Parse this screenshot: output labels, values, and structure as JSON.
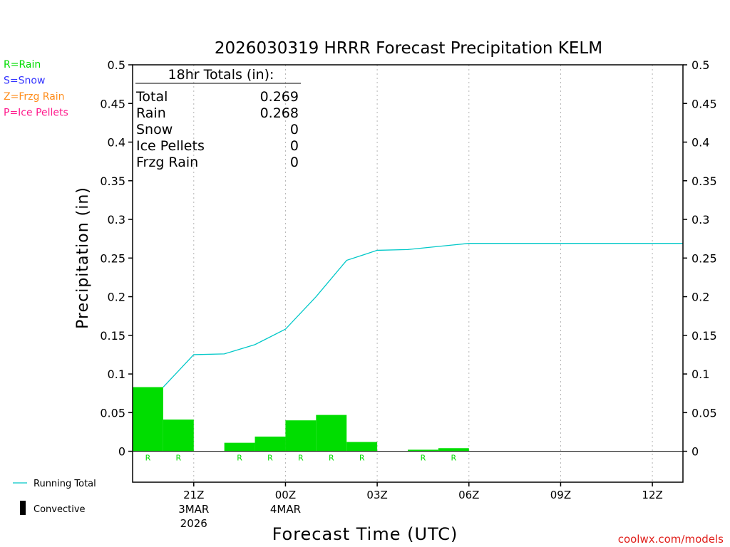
{
  "chart_data": {
    "type": "bar",
    "title": "2026030319 HRRR Forecast Precipitation KELM",
    "xlabel": "Forecast Time (UTC)",
    "ylabel": "Precipitation (in)",
    "ylim": [
      -0.04,
      0.5
    ],
    "y_ticks": [
      "0.5",
      "0.45",
      "0.4",
      "0.35",
      "0.3",
      "0.25",
      "0.2",
      "0.15",
      "0.1",
      "0.05",
      "0"
    ],
    "y_tick_values": [
      0.5,
      0.45,
      0.4,
      0.35,
      0.3,
      0.25,
      0.2,
      0.15,
      0.1,
      0.05,
      0
    ],
    "xlim": [
      19,
      37
    ],
    "x_ticks": [
      {
        "hour": 21,
        "label": "21Z",
        "sub1": "3MAR",
        "sub2": "2026"
      },
      {
        "hour": 24,
        "label": "00Z",
        "sub1": "4MAR",
        "sub2": ""
      },
      {
        "hour": 27,
        "label": "03Z",
        "sub1": "",
        "sub2": ""
      },
      {
        "hour": 30,
        "label": "06Z",
        "sub1": "",
        "sub2": ""
      },
      {
        "hour": 33,
        "label": "09Z",
        "sub1": "",
        "sub2": ""
      },
      {
        "hour": 36,
        "label": "12Z",
        "sub1": "",
        "sub2": ""
      }
    ],
    "hours": [
      20,
      21,
      22,
      23,
      24,
      25,
      26,
      27,
      28,
      29,
      30,
      31,
      32,
      33,
      34,
      35,
      36,
      37
    ],
    "series": [
      {
        "name": "Rain",
        "type": "bar",
        "color": "#00dd00",
        "values": [
          0.083,
          0.041,
          0,
          0.011,
          0.019,
          0.04,
          0.047,
          0.012,
          0,
          0.002,
          0.004,
          0,
          0,
          0,
          0,
          0,
          0,
          0
        ]
      },
      {
        "name": "Running Total",
        "type": "line",
        "color": "#00c8c8",
        "values": [
          0.083,
          0.125,
          0.126,
          0.138,
          0.158,
          0.2,
          0.247,
          0.26,
          0.261,
          0.265,
          0.269,
          0.269,
          0.269,
          0.269,
          0.269,
          0.269,
          0.269,
          0.269
        ]
      }
    ],
    "precip_type_labels": [
      {
        "hour": 20,
        "text": "R"
      },
      {
        "hour": 21,
        "text": "R"
      },
      {
        "hour": 23,
        "text": "R"
      },
      {
        "hour": 24,
        "text": "R"
      },
      {
        "hour": 25,
        "text": "R"
      },
      {
        "hour": 26,
        "text": "R"
      },
      {
        "hour": 27,
        "text": "R"
      },
      {
        "hour": 29,
        "text": "R"
      },
      {
        "hour": 30,
        "text": "R"
      }
    ],
    "grid": "vertical-dotted",
    "legend_position": "left",
    "type_legend": [
      {
        "text": "R=Rain",
        "color": "#00dd00"
      },
      {
        "text": "S=Snow",
        "color": "#3333ff"
      },
      {
        "text": "Z=Frzg Rain",
        "color": "#ff8c1a"
      },
      {
        "text": "P=Ice Pellets",
        "color": "#ff1a8c"
      }
    ],
    "bottom_legend": {
      "running_total": "Running Total",
      "convective": "Convective"
    },
    "totals_box": {
      "header": "18hr Totals (in):",
      "rows": [
        {
          "label": "Total",
          "value": "0.269"
        },
        {
          "label": "Rain",
          "value": "0.268"
        },
        {
          "label": "Snow",
          "value": "0"
        },
        {
          "label": "Ice Pellets",
          "value": "0"
        },
        {
          "label": "Frzg Rain",
          "value": "0"
        }
      ]
    },
    "credit": "coolwx.com/models"
  }
}
